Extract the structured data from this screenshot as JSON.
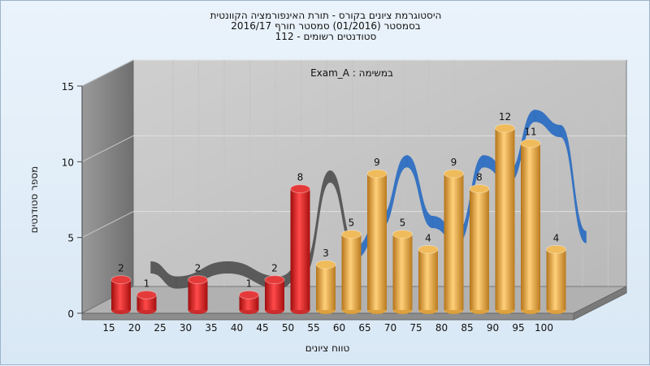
{
  "chart_data": {
    "type": "bar",
    "title_lines": [
      "היסטוגרמת ציונים בקורס - תורת האינפורמציה הקוונטית",
      "בסמסטר  (01/2016)  סמסטר חורף 2016/17",
      "סטודנטים רשומים - 112"
    ],
    "annotation": "במשימה : Exam_A",
    "xlabel": "טווח ציונים",
    "ylabel": "מספר סטודנטים",
    "x_ticks": [
      "15",
      "20",
      "25",
      "30",
      "35",
      "40",
      "45",
      "50",
      "55",
      "60",
      "65",
      "70",
      "75",
      "80",
      "85",
      "90",
      "95",
      "100"
    ],
    "y_ticks": [
      "0",
      "5",
      "10",
      "15"
    ],
    "ylim": [
      0,
      15
    ],
    "grid": true,
    "bars": [
      {
        "x": "15",
        "value": 2,
        "color": "#d21f1f"
      },
      {
        "x": "20",
        "value": 1,
        "color": "#d21f1f"
      },
      {
        "x": "30",
        "value": 2,
        "color": "#d21f1f"
      },
      {
        "x": "40",
        "value": 1,
        "color": "#d21f1f"
      },
      {
        "x": "45",
        "value": 2,
        "color": "#d21f1f"
      },
      {
        "x": "50",
        "value": 8,
        "color": "#d21f1f"
      },
      {
        "x": "55",
        "value": 3,
        "color": "#e2a133"
      },
      {
        "x": "60",
        "value": 5,
        "color": "#e2a133"
      },
      {
        "x": "65",
        "value": 9,
        "color": "#e2a133"
      },
      {
        "x": "70",
        "value": 5,
        "color": "#e2a133"
      },
      {
        "x": "75",
        "value": 4,
        "color": "#e2a133"
      },
      {
        "x": "80",
        "value": 9,
        "color": "#e2a133"
      },
      {
        "x": "85",
        "value": 8,
        "color": "#e2a133"
      },
      {
        "x": "90",
        "value": 12,
        "color": "#e2a133"
      },
      {
        "x": "95",
        "value": 11,
        "color": "#e2a133"
      },
      {
        "x": "100",
        "value": 4,
        "color": "#e2a133"
      }
    ],
    "trend_color_low": "#555555",
    "trend_color_high": "#2f6fc2",
    "trend_color_threshold": 55
  }
}
